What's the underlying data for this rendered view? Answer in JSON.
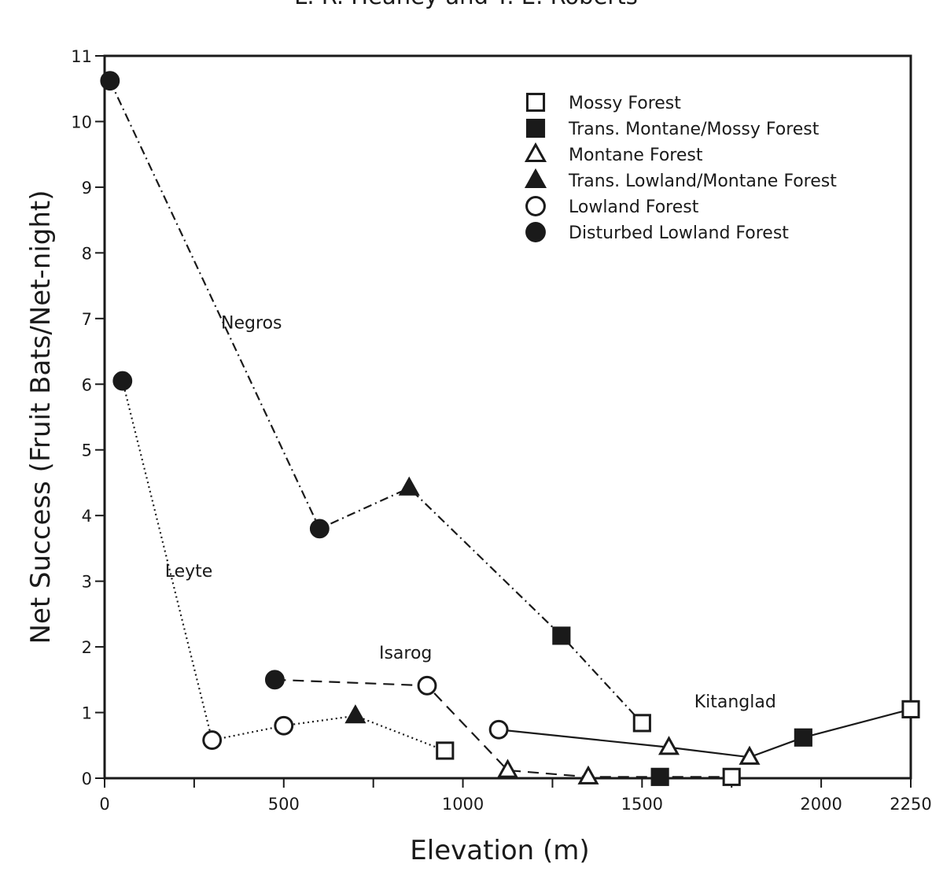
{
  "header": {
    "text": "L. R. Heaney and T. E. Roberts"
  },
  "chart_data": {
    "type": "line",
    "title": "",
    "xlabel": "Elevation (m)",
    "ylabel": "Net Success (Fruit Bats/Net-night)",
    "xlim": [
      0,
      2250
    ],
    "ylim": [
      0,
      11
    ],
    "x_ticks": [
      0,
      500,
      1000,
      1500,
      2000,
      2250
    ],
    "x_minor_ticks": [
      250,
      750,
      1250,
      1750
    ],
    "y_ticks": [
      0,
      1,
      2,
      3,
      4,
      5,
      6,
      7,
      8,
      9,
      10,
      11
    ],
    "grid": false,
    "legend": {
      "position": "top-right",
      "entries": [
        {
          "label": "Mossy Forest",
          "marker": "square-open"
        },
        {
          "label": "Trans. Montane/Mossy Forest",
          "marker": "square-filled"
        },
        {
          "label": "Montane Forest",
          "marker": "triangle-open"
        },
        {
          "label": "Trans. Lowland/Montane Forest",
          "marker": "triangle-filled"
        },
        {
          "label": "Lowland Forest",
          "marker": "circle-open"
        },
        {
          "label": "Disturbed Lowland Forest",
          "marker": "circle-filled"
        }
      ]
    },
    "series": [
      {
        "name": "Negros",
        "line_style": "dash-dot",
        "points": [
          {
            "x": 15,
            "y": 10.62,
            "marker": "circle-filled"
          },
          {
            "x": 600,
            "y": 3.8,
            "marker": "circle-filled"
          },
          {
            "x": 850,
            "y": 4.42,
            "marker": "triangle-filled"
          },
          {
            "x": 1275,
            "y": 2.17,
            "marker": "square-filled"
          },
          {
            "x": 1500,
            "y": 0.84,
            "marker": "square-open"
          }
        ]
      },
      {
        "name": "Leyte",
        "line_style": "dotted",
        "points": [
          {
            "x": 50,
            "y": 6.05,
            "marker": "circle-filled"
          },
          {
            "x": 300,
            "y": 0.58,
            "marker": "circle-open"
          },
          {
            "x": 500,
            "y": 0.8,
            "marker": "circle-open"
          },
          {
            "x": 700,
            "y": 0.95,
            "marker": "triangle-filled"
          },
          {
            "x": 950,
            "y": 0.42,
            "marker": "square-open"
          }
        ]
      },
      {
        "name": "Isarog",
        "line_style": "dashed",
        "points": [
          {
            "x": 475,
            "y": 1.5,
            "marker": "circle-filled"
          },
          {
            "x": 900,
            "y": 1.41,
            "marker": "circle-open"
          },
          {
            "x": 1125,
            "y": 0.12,
            "marker": "triangle-open"
          },
          {
            "x": 1350,
            "y": 0.02,
            "marker": "triangle-open"
          },
          {
            "x": 1550,
            "y": 0.02,
            "marker": "square-filled"
          },
          {
            "x": 1750,
            "y": 0.02,
            "marker": "square-open"
          }
        ]
      },
      {
        "name": "Kitanglad",
        "line_style": "solid",
        "points": [
          {
            "x": 1100,
            "y": 0.74,
            "marker": "circle-open"
          },
          {
            "x": 1575,
            "y": 0.47,
            "marker": "triangle-open"
          },
          {
            "x": 1800,
            "y": 0.32,
            "marker": "triangle-open"
          },
          {
            "x": 1950,
            "y": 0.62,
            "marker": "square-filled"
          },
          {
            "x": 2250,
            "y": 1.05,
            "marker": "square-open"
          }
        ]
      }
    ],
    "annotations": [
      {
        "text": "Negros",
        "x": 410,
        "y": 6.85
      },
      {
        "text": "Leyte",
        "x": 235,
        "y": 3.07
      },
      {
        "text": "Isarog",
        "x": 840,
        "y": 1.82
      },
      {
        "text": "Kitanglad",
        "x": 1760,
        "y": 1.08
      }
    ]
  }
}
